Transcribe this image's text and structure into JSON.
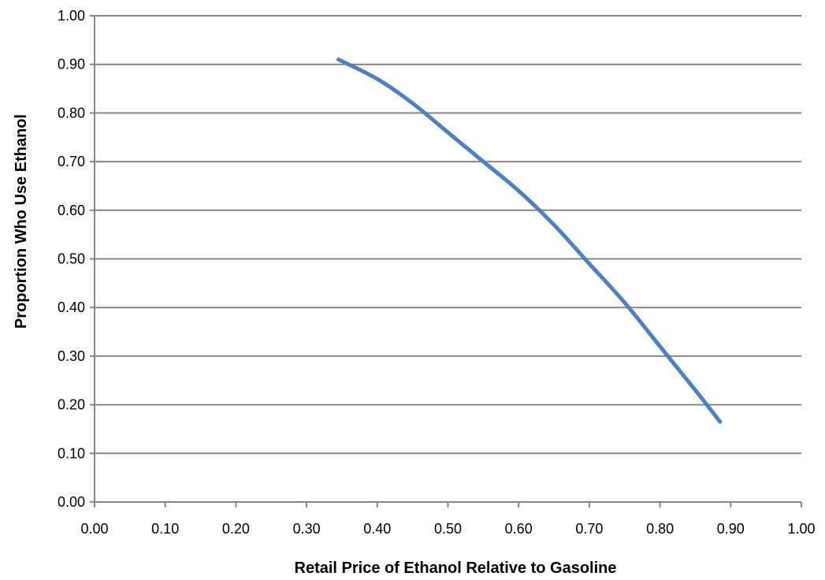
{
  "chart_data": {
    "type": "line",
    "title": "",
    "xlabel": "Retail Price of Ethanol Relative to Gasoline",
    "ylabel": "Proportion Who Use Ethanol",
    "xlim": [
      0,
      1
    ],
    "ylim": [
      0,
      1
    ],
    "x_ticks": [
      "0.00",
      "0.10",
      "0.20",
      "0.30",
      "0.40",
      "0.50",
      "0.60",
      "0.70",
      "0.80",
      "0.90",
      "1.00"
    ],
    "y_ticks": [
      "0.00",
      "0.10",
      "0.20",
      "0.30",
      "0.40",
      "0.50",
      "0.60",
      "0.70",
      "0.80",
      "0.90",
      "1.00"
    ],
    "grid": "horizontal",
    "legend": "none",
    "series": [
      {
        "color": "#4f81bd",
        "points": [
          {
            "x": 0.345,
            "y": 0.91
          },
          {
            "x": 0.4,
            "y": 0.87
          },
          {
            "x": 0.45,
            "y": 0.82
          },
          {
            "x": 0.5,
            "y": 0.76
          },
          {
            "x": 0.55,
            "y": 0.7
          },
          {
            "x": 0.6,
            "y": 0.64
          },
          {
            "x": 0.65,
            "y": 0.57
          },
          {
            "x": 0.7,
            "y": 0.49
          },
          {
            "x": 0.75,
            "y": 0.41
          },
          {
            "x": 0.8,
            "y": 0.32
          },
          {
            "x": 0.85,
            "y": 0.23
          },
          {
            "x": 0.885,
            "y": 0.165
          }
        ]
      }
    ],
    "colors": {
      "grid": "#868686",
      "axis": "#868686",
      "line": "#4f81bd"
    }
  }
}
